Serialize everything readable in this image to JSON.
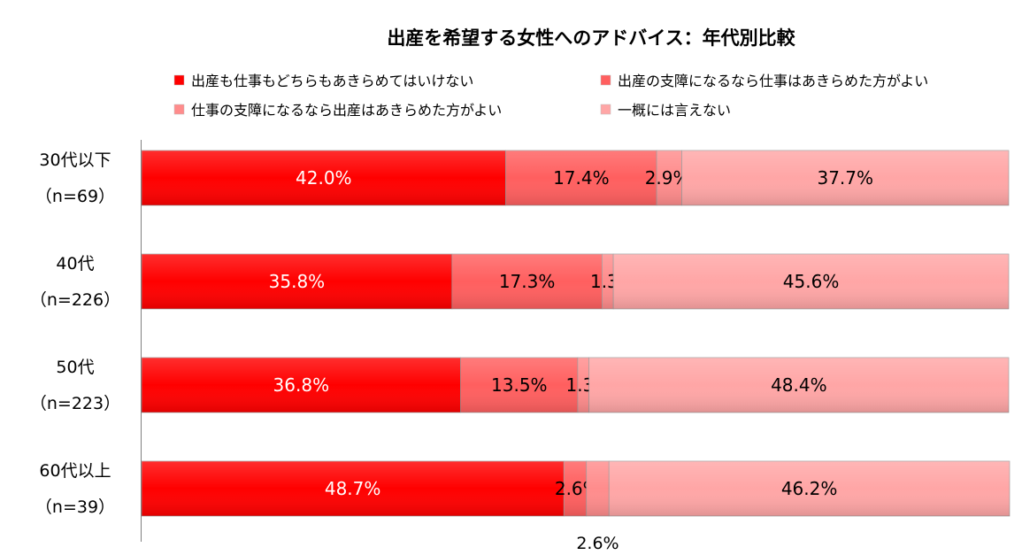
{
  "chart_data": {
    "type": "bar",
    "orientation": "horizontal",
    "stacked": "percent",
    "title": "出産を希望する女性へのアドバイス：年代別比較",
    "xlabel": "",
    "ylabel": "",
    "xlim": [
      0,
      100
    ],
    "grid": false,
    "legend_position": "top",
    "categories": [
      {
        "label": "30代以下",
        "sample": "（n=69）"
      },
      {
        "label": "40代",
        "sample": "（n=226）"
      },
      {
        "label": "50代",
        "sample": "（n=223）"
      },
      {
        "label": "60代以上",
        "sample": "（n=39）"
      }
    ],
    "series": [
      {
        "name": "出産も仕事もどちらもあきらめてはいけない",
        "color": "#ff0000",
        "values": [
          42.0,
          35.8,
          36.8,
          48.7
        ],
        "labels": [
          "42.0%",
          "35.8%",
          "36.8%",
          "48.7%"
        ]
      },
      {
        "name": "出産の支障になるなら仕事はあきらめた方がよい",
        "color": "#ff5f5f",
        "values": [
          17.4,
          17.3,
          13.5,
          2.6
        ],
        "labels": [
          "17.4%",
          "17.3%",
          "13.5%",
          "2.6%"
        ]
      },
      {
        "name": "仕事の支障になるなら出産はあきらめた方がよい",
        "color": "#ff8c8c",
        "values": [
          2.9,
          1.3,
          1.3,
          2.6
        ],
        "labels": [
          "2.9%",
          "1.3%",
          "1.3%",
          "2.6%"
        ]
      },
      {
        "name": "一概には言えない",
        "color": "#ffa6a6",
        "values": [
          37.7,
          45.6,
          48.4,
          46.2
        ],
        "labels": [
          "37.7%",
          "45.6%",
          "48.4%",
          "46.2%"
        ]
      }
    ]
  }
}
